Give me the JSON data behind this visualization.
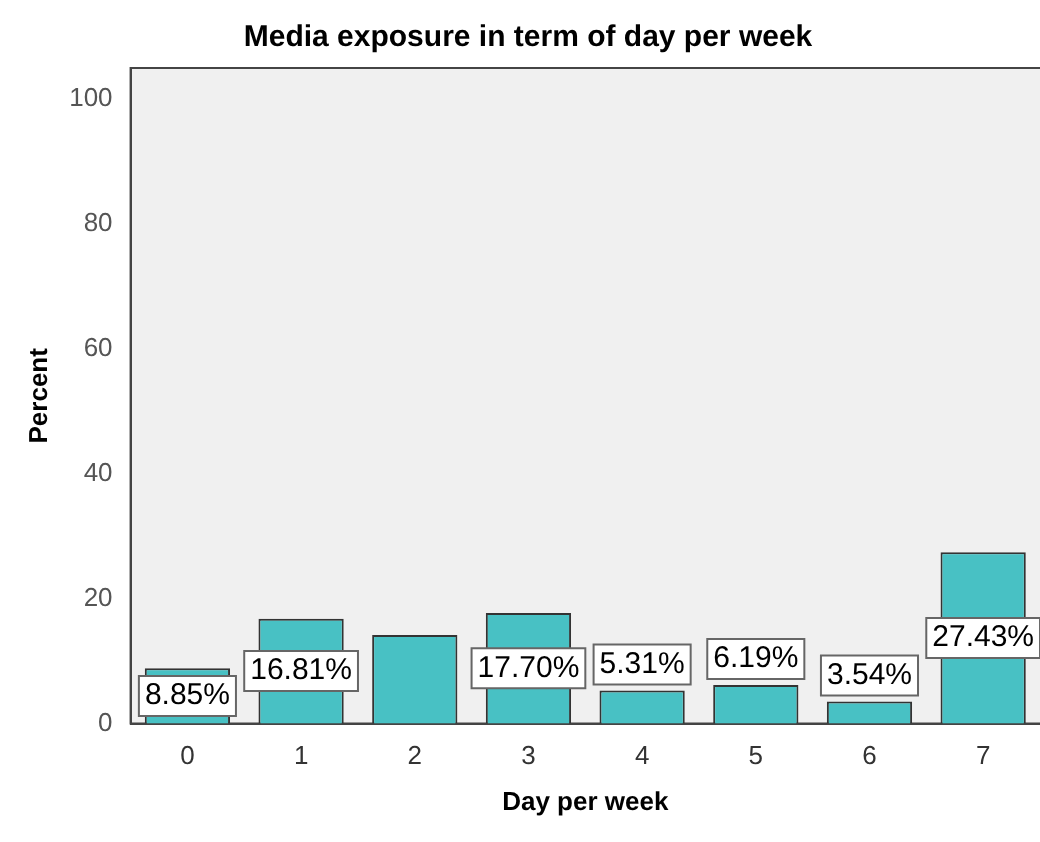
{
  "chart_data": {
    "type": "bar",
    "title": "Media exposure in term of day per week",
    "xlabel": "Day per week",
    "ylabel": "Percent",
    "categories": [
      "0",
      "1",
      "2",
      "3",
      "4",
      "5",
      "6",
      "7"
    ],
    "values": [
      8.85,
      16.81,
      14.2,
      17.7,
      5.31,
      6.19,
      3.54,
      27.43
    ],
    "value_labels": [
      "8.85%",
      "16.81%",
      null,
      "17.70%",
      "5.31%",
      "6.19%",
      "3.54%",
      "27.43%"
    ],
    "color": "#48c1c4",
    "ylim": [
      0,
      105
    ],
    "yticks": [
      0,
      20,
      40,
      60,
      80,
      100
    ],
    "grid": false,
    "legend": false
  }
}
